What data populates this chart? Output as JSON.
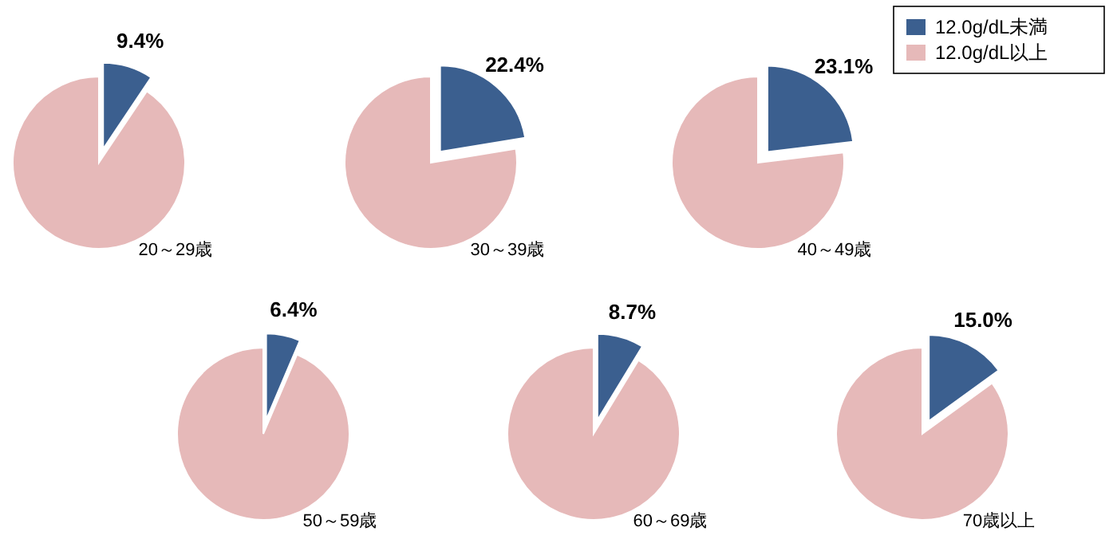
{
  "chart_data": [
    {
      "type": "pie",
      "title": "20～29歳",
      "categories": [
        null,
        null
      ],
      "values": [
        9.4,
        90.6
      ],
      "colors": [
        "#3b5f8f",
        "#e6b9b9"
      ],
      "value_labels": [
        "9.4%",
        null
      ]
    },
    {
      "type": "pie",
      "title": "30～39歳",
      "categories": [
        null,
        null
      ],
      "values": [
        22.4,
        77.6
      ],
      "colors": [
        "#3b5f8f",
        "#e6b9b9"
      ],
      "value_labels": [
        "22.4%",
        null
      ]
    },
    {
      "type": "pie",
      "title": "40～49歳",
      "categories": [
        "12.0g/dL未満",
        "12.0g/dL以上"
      ],
      "values": [
        23.1,
        76.9
      ],
      "colors": [
        "#3b5f8f",
        "#e6b9b9"
      ],
      "value_labels": [
        "23.1%",
        null
      ],
      "legend": "top right"
    },
    {
      "type": "pie",
      "title": "50～59歳",
      "categories": [
        null,
        null
      ],
      "values": [
        6.4,
        93.6
      ],
      "colors": [
        "#3b5f8f",
        "#e6b9b9"
      ],
      "value_labels": [
        "6.4%",
        null
      ]
    },
    {
      "type": "pie",
      "title": "60～69歳",
      "categories": [
        null,
        null
      ],
      "values": [
        8.7,
        91.3
      ],
      "colors": [
        "#3b5f8f",
        "#e6b9b9"
      ],
      "value_labels": [
        "8.7%",
        null
      ]
    },
    {
      "type": "pie",
      "title": "70歳以上",
      "categories": [
        null,
        null
      ],
      "values": [
        15.0,
        85.0
      ],
      "colors": [
        "#3b5f8f",
        "#e6b9b9"
      ],
      "value_labels": [
        "15.0%",
        null
      ]
    }
  ]
}
